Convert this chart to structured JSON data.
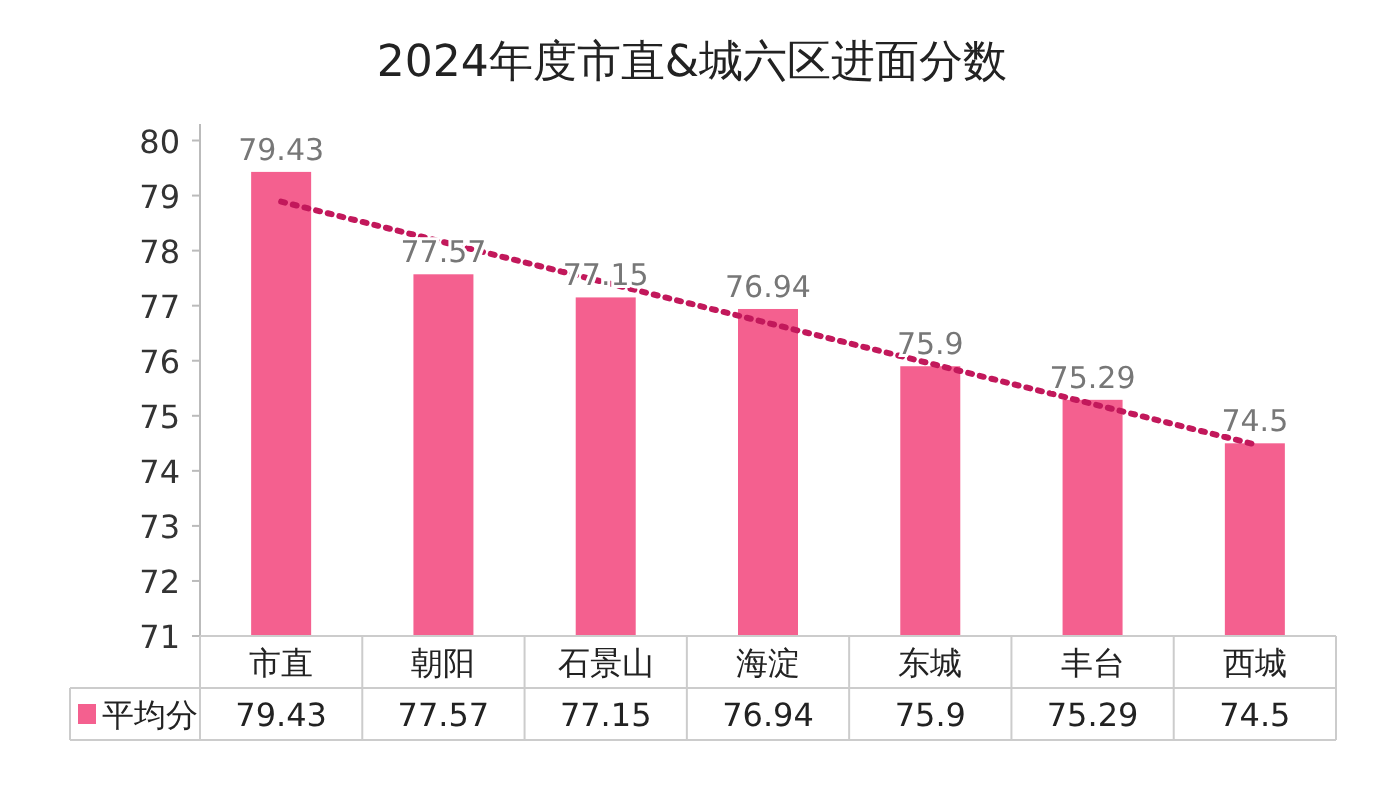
{
  "chart_data": {
    "type": "bar",
    "title": "2024年度市直&城六区进面分数",
    "categories": [
      "市直",
      "朝阳",
      "石景山",
      "海淀",
      "东城",
      "丰台",
      "西城"
    ],
    "series": [
      {
        "name": "平均分",
        "color": "#f4608f",
        "values": [
          79.43,
          77.57,
          77.15,
          76.94,
          75.9,
          75.29,
          74.5
        ],
        "value_labels": [
          "79.43",
          "77.57",
          "77.15",
          "76.94",
          "75.9",
          "75.29",
          "74.5"
        ]
      },
      {
        "type": "line",
        "color": "#c2185b",
        "line_style": "dotted",
        "x": [
          "市直",
          "西城"
        ],
        "values": [
          78.89,
          74.48
        ]
      }
    ],
    "ylim": [
      71,
      80.3
    ],
    "yticks": [
      71,
      72,
      73,
      74,
      75,
      76,
      77,
      78,
      79,
      80
    ],
    "legend": "bottom"
  }
}
